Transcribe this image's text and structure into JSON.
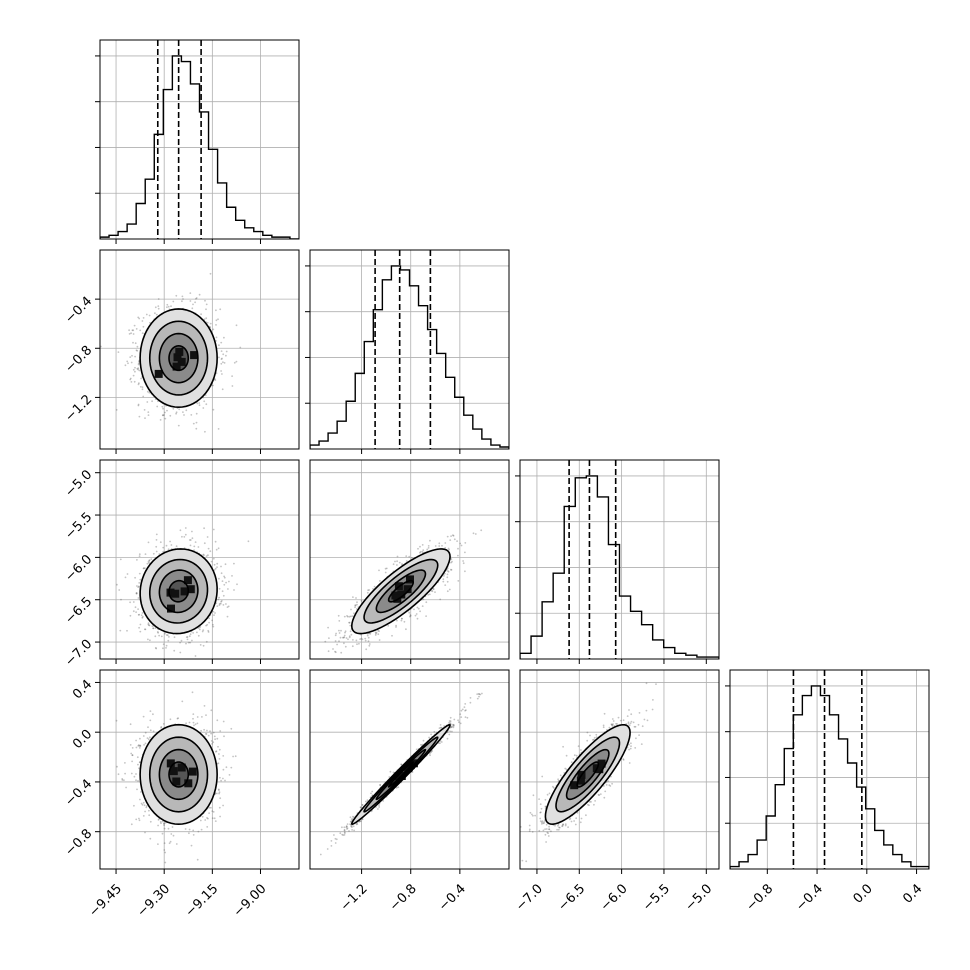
{
  "figure": {
    "type": "corner",
    "n_params": 4
  },
  "chart_data": {
    "type": "corner",
    "parameters": [
      {
        "id": "p1",
        "range": [
          -9.5,
          -8.88
        ],
        "ticks": [
          -9.45,
          -9.3,
          -9.15,
          -9.0
        ],
        "tick_labels": [
          "−9.45",
          "−9.30",
          "−9.15",
          "−9.00"
        ],
        "quantiles": [
          -9.32,
          -9.255,
          -9.185
        ]
      },
      {
        "id": "p2",
        "range": [
          -1.62,
          0.0
        ],
        "ticks": [
          -1.2,
          -0.8,
          -0.4
        ],
        "tick_labels": [
          "−1.2",
          "−0.8",
          "−0.4"
        ],
        "quantiles": [
          -1.09,
          -0.89,
          -0.64
        ]
      },
      {
        "id": "p3",
        "range": [
          -7.2,
          -4.85
        ],
        "ticks": [
          -7.0,
          -6.5,
          -6.0,
          -5.5,
          -5.0
        ],
        "tick_labels": [
          "−7.0",
          "−6.5",
          "−6.0",
          "−5.5",
          "−5.0"
        ],
        "quantiles": [
          -6.62,
          -6.38,
          -6.07
        ]
      },
      {
        "id": "p4",
        "range": [
          -1.1,
          0.5
        ],
        "ticks": [
          -0.8,
          -0.4,
          0.0,
          0.4
        ],
        "tick_labels": [
          "−0.8",
          "−0.4",
          "0.0",
          "0.4"
        ],
        "quantiles": [
          -0.59,
          -0.34,
          -0.04
        ]
      }
    ],
    "histograms": [
      {
        "param": "p1",
        "bin_counts": [
          1,
          2,
          4,
          8,
          19,
          32,
          56,
          80,
          98,
          95,
          83,
          68,
          48,
          30,
          17,
          10,
          6,
          4,
          2,
          1,
          1,
          0
        ]
      },
      {
        "param": "p2",
        "bin_counts": [
          2,
          4,
          8,
          14,
          24,
          38,
          54,
          70,
          85,
          92,
          90,
          82,
          72,
          60,
          48,
          36,
          26,
          17,
          10,
          5,
          2,
          1
        ]
      },
      {
        "param": "p3",
        "bin_counts": [
          3,
          12,
          30,
          45,
          80,
          95,
          96,
          85,
          60,
          33,
          25,
          18,
          10,
          6,
          3,
          2,
          1,
          1
        ]
      },
      {
        "param": "p4",
        "bin_counts": [
          1,
          3,
          6,
          12,
          22,
          35,
          50,
          64,
          72,
          76,
          72,
          64,
          54,
          44,
          34,
          25,
          16,
          10,
          6,
          3,
          1,
          1
        ]
      }
    ],
    "joint": [
      {
        "x": "p1",
        "y": "p2",
        "mean": [
          -9.255,
          -0.88
        ],
        "std": [
          0.06,
          0.2
        ],
        "rho": 0.0
      },
      {
        "x": "p1",
        "y": "p3",
        "mean": [
          -9.255,
          -6.4
        ],
        "std": [
          0.06,
          0.25
        ],
        "rho": 0.05
      },
      {
        "x": "p2",
        "y": "p3",
        "mean": [
          -0.88,
          -6.4
        ],
        "std": [
          0.2,
          0.25
        ],
        "rho": 0.82
      },
      {
        "x": "p1",
        "y": "p4",
        "mean": [
          -9.255,
          -0.34
        ],
        "std": [
          0.06,
          0.2
        ],
        "rho": 0.0
      },
      {
        "x": "p2",
        "y": "p4",
        "mean": [
          -0.88,
          -0.34
        ],
        "std": [
          0.2,
          0.2
        ],
        "rho": 0.99
      },
      {
        "x": "p3",
        "y": "p4",
        "mean": [
          -6.4,
          -0.34
        ],
        "std": [
          0.25,
          0.2
        ],
        "rho": 0.84
      }
    ],
    "contour_levels_sigma": [
      0.5,
      1.0,
      1.5,
      2.0
    ],
    "grid": true
  }
}
